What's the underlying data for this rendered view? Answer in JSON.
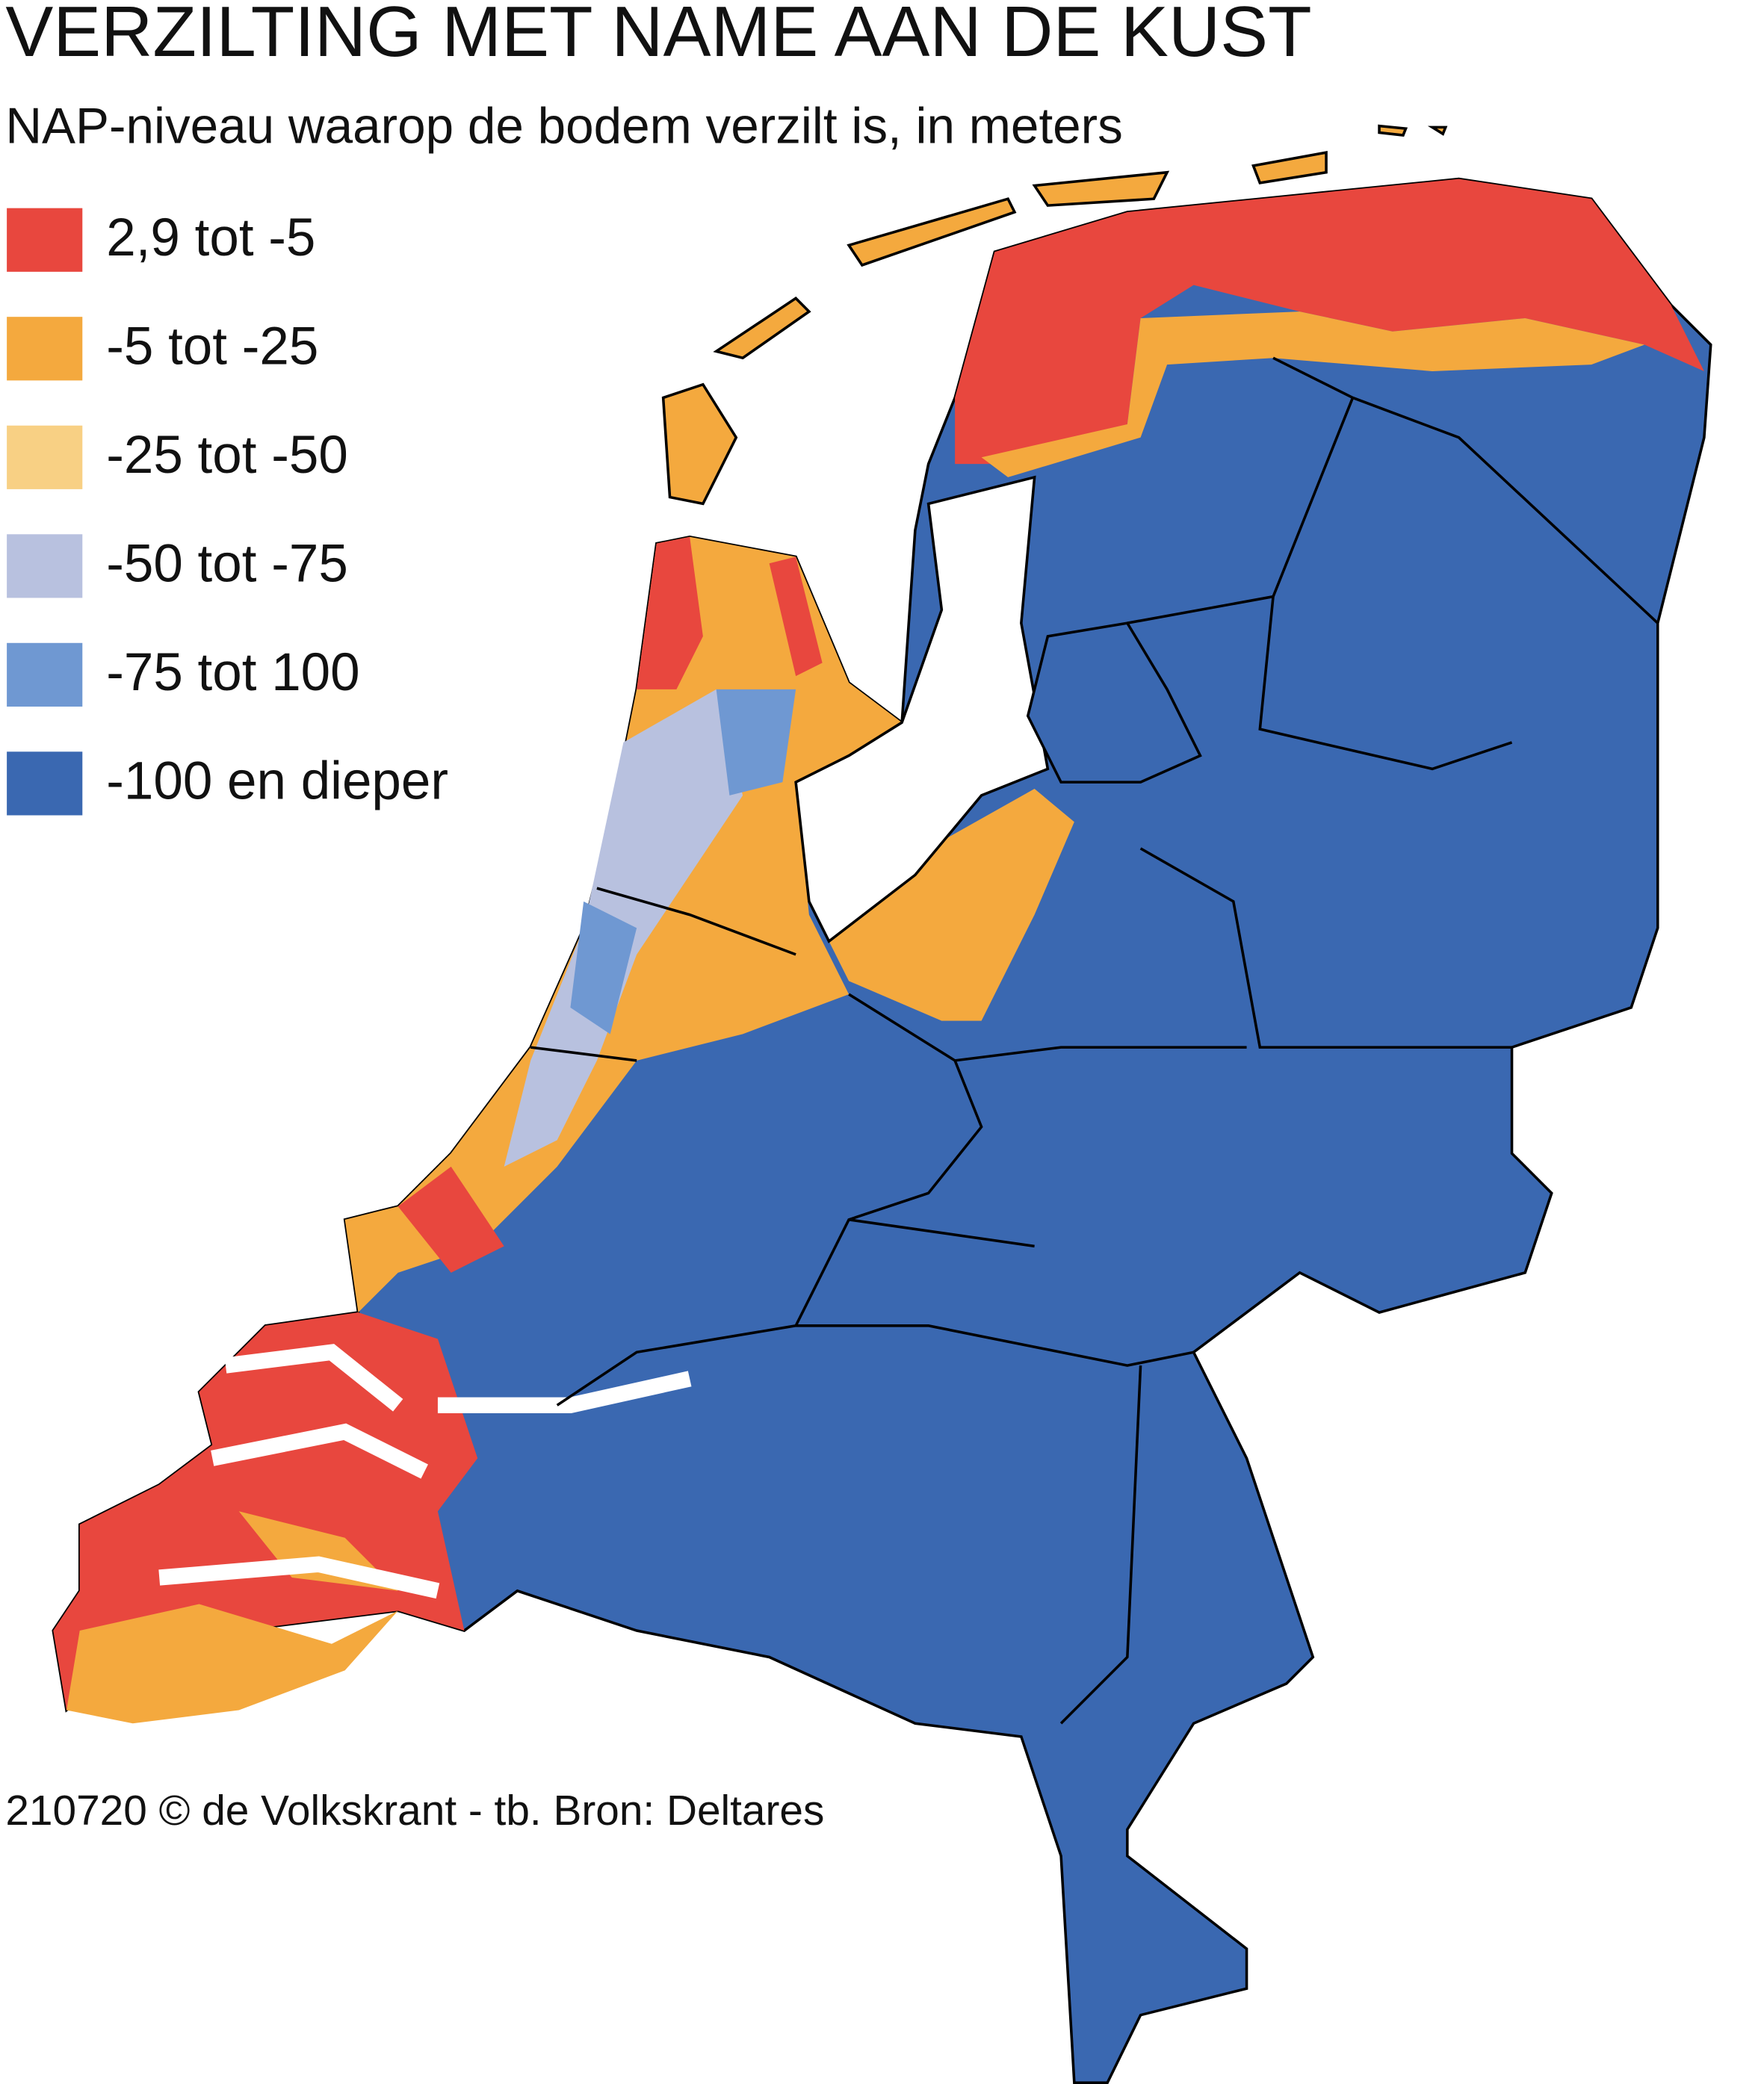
{
  "title": "VERZILTING MET NAME AAN DE KUST",
  "subtitle": "NAP-niveau waarop de bodem verzilt is, in meters",
  "legend": [
    {
      "label": "2,9 tot -5",
      "color": "#e8473e"
    },
    {
      "label": "-5 tot -25",
      "color": "#f4a93e"
    },
    {
      "label": "-25 tot -50",
      "color": "#f8d084"
    },
    {
      "label": "-50 tot -75",
      "color": "#b8c1df"
    },
    {
      "label": "-75 tot 100",
      "color": "#6f98d2"
    },
    {
      "label": "-100 en dieper",
      "color": "#3a68b1"
    }
  ],
  "source": "210720 © de Volkskrant - tb. Bron: Deltares"
}
